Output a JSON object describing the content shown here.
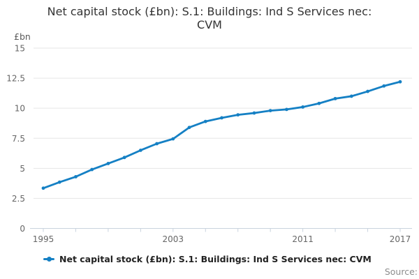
{
  "title": {
    "line1": "Net capital stock (£bn): S.1: Buildings: Ind S Services nec:",
    "line2": "CVM"
  },
  "y_axis_unit_label": "£bn",
  "legend": {
    "label": "Net capital stock (£bn): S.1: Buildings: Ind S Services nec: CVM"
  },
  "source_label": "Source:",
  "colors": {
    "series_line": "#1580c4",
    "gridline": "#e6e6e6",
    "axis_line": "#c9d3de",
    "title_text": "#333333",
    "axis_label_text": "#666666",
    "unit_label_text": "#595959",
    "legend_text": "#222222",
    "source_text": "#8c8c8c",
    "background": "#ffffff"
  },
  "chart_data": {
    "type": "line",
    "title": "Net capital stock (£bn): S.1: Buildings: Ind S Services nec: CVM",
    "ylabel": "£bn",
    "xlabel": "",
    "x": [
      1995,
      1996,
      1997,
      1998,
      1999,
      2000,
      2001,
      2002,
      2003,
      2004,
      2005,
      2006,
      2007,
      2008,
      2009,
      2010,
      2011,
      2012,
      2013,
      2014,
      2015,
      2016,
      2017
    ],
    "series": [
      {
        "name": "Net capital stock (£bn): S.1: Buildings: Ind S Services nec: CVM",
        "values": [
          3.35,
          3.85,
          4.3,
          4.9,
          5.4,
          5.9,
          6.5,
          7.05,
          7.45,
          8.4,
          8.9,
          9.2,
          9.45,
          9.6,
          9.8,
          9.9,
          10.1,
          10.4,
          10.8,
          11.0,
          11.4,
          11.85,
          12.2
        ]
      }
    ],
    "xlim": [
      1995,
      2017
    ],
    "ylim": [
      0,
      15
    ],
    "yticks": [
      0,
      2.5,
      5,
      7.5,
      10,
      12.5,
      15
    ],
    "ytick_labels": [
      "0",
      "2.5",
      "5",
      "7.5",
      "10",
      "12.5",
      "15"
    ],
    "xtick_interval_years": 2,
    "xtick_labels": [
      1995,
      2003,
      2011,
      2017
    ],
    "grid": "horizontal",
    "legend_position": "bottom",
    "marker": "circle"
  }
}
